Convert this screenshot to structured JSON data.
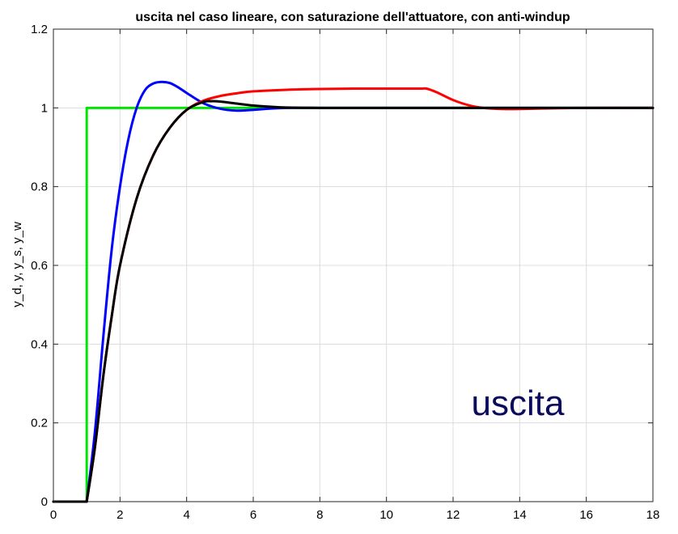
{
  "chart_data": {
    "type": "line",
    "title": "uscita nel caso lineare, con saturazione dell'attuatore, con anti-windup",
    "xlabel": "",
    "ylabel": "y_d, y, y_s, y_w",
    "xlim": [
      0,
      18
    ],
    "ylim": [
      0,
      1.2
    ],
    "xticks": [
      "0",
      "2",
      "4",
      "6",
      "8",
      "10",
      "12",
      "14",
      "16",
      "18"
    ],
    "yticks": [
      "0",
      "0.2",
      "0.4",
      "0.6",
      "0.8",
      "1",
      "1.2"
    ],
    "grid": true,
    "legend": "none",
    "annotation": {
      "text": "uscita",
      "color": "#0b0b5e"
    },
    "series": [
      {
        "color": "#00e600",
        "x": [
          0,
          1,
          1,
          18
        ],
        "y": [
          0,
          0,
          1,
          1
        ]
      },
      {
        "color": "#0000ff",
        "x": [
          0,
          1,
          1.25,
          1.5,
          1.75,
          2,
          2.25,
          2.5,
          2.75,
          3,
          3.25,
          3.5,
          3.75,
          4,
          4.5,
          5,
          5.5,
          6,
          6.5,
          7,
          8,
          10,
          12,
          14,
          16,
          18
        ],
        "y": [
          0,
          0,
          0.18,
          0.42,
          0.64,
          0.8,
          0.92,
          1.0,
          1.045,
          1.062,
          1.066,
          1.063,
          1.052,
          1.038,
          1.012,
          0.998,
          0.993,
          0.995,
          0.998,
          1.0,
          1.0,
          1.0,
          1.0,
          1.0,
          1.0,
          1.0
        ]
      },
      {
        "color": "#ff0000",
        "x": [
          0,
          1,
          1.25,
          1.5,
          1.75,
          2,
          2.5,
          3,
          3.5,
          4,
          4.5,
          5,
          5.5,
          6,
          7,
          8,
          9,
          10,
          11,
          11.2,
          11.5,
          12,
          12.5,
          13,
          13.5,
          14,
          15,
          16,
          18
        ],
        "y": [
          0,
          0,
          0.14,
          0.32,
          0.47,
          0.6,
          0.77,
          0.88,
          0.95,
          0.995,
          1.018,
          1.03,
          1.037,
          1.042,
          1.046,
          1.048,
          1.049,
          1.049,
          1.049,
          1.049,
          1.04,
          1.02,
          1.006,
          0.999,
          0.997,
          0.997,
          0.999,
          1.0,
          1.0
        ]
      },
      {
        "color": "#000000",
        "x": [
          0,
          1,
          1.25,
          1.5,
          1.75,
          2,
          2.5,
          3,
          3.5,
          4,
          4.5,
          4.75,
          5,
          5.5,
          6,
          6.5,
          7,
          8,
          10,
          12,
          14,
          16,
          18
        ],
        "y": [
          0,
          0,
          0.14,
          0.32,
          0.47,
          0.6,
          0.77,
          0.88,
          0.95,
          0.995,
          1.015,
          1.017,
          1.016,
          1.011,
          1.006,
          1.003,
          1.001,
          1.0,
          1.0,
          1.0,
          1.0,
          1.0,
          1.0
        ]
      }
    ]
  }
}
